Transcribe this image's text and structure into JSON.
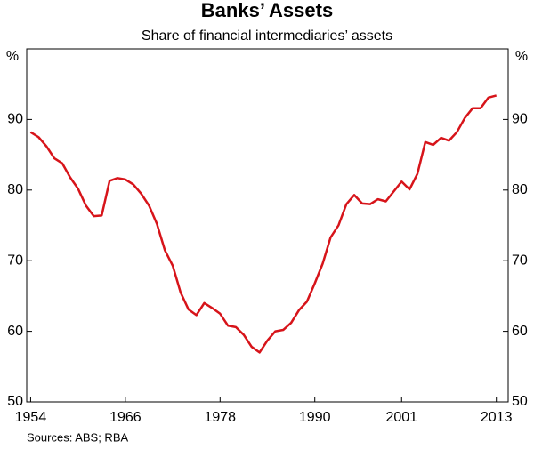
{
  "chart_data": {
    "type": "line",
    "title": "Banks’ Assets",
    "subtitle": "Share of financial intermediaries’ assets",
    "y_unit": "%",
    "source": "Sources: ABS; RBA",
    "x": [
      1954,
      1955,
      1956,
      1957,
      1958,
      1959,
      1960,
      1961,
      1962,
      1963,
      1964,
      1965,
      1966,
      1967,
      1968,
      1969,
      1970,
      1971,
      1972,
      1973,
      1974,
      1975,
      1976,
      1977,
      1978,
      1979,
      1980,
      1981,
      1982,
      1983,
      1984,
      1985,
      1986,
      1987,
      1988,
      1989,
      1990,
      1991,
      1992,
      1993,
      1994,
      1995,
      1996,
      1997,
      1998,
      1999,
      2000,
      2001,
      2002,
      2003,
      2004,
      2005,
      2006,
      2007,
      2008,
      2009,
      2010,
      2011,
      2012,
      2013
    ],
    "series": [
      {
        "color": "#d7141a",
        "values": [
          88.2,
          87.5,
          86.2,
          84.5,
          83.8,
          81.8,
          80.2,
          77.8,
          76.3,
          76.4,
          81.3,
          81.7,
          81.5,
          80.8,
          79.5,
          77.8,
          75.2,
          71.5,
          69.3,
          65.5,
          63.1,
          62.3,
          64.0,
          63.3,
          62.5,
          60.8,
          60.6,
          59.5,
          57.8,
          57.0,
          58.7,
          60.0,
          60.2,
          61.2,
          63.0,
          64.2,
          66.8,
          69.6,
          73.3,
          75.0,
          78.0,
          79.3,
          78.1,
          78.0,
          78.7,
          78.4,
          79.8,
          81.2,
          80.1,
          82.3,
          86.8,
          86.4,
          87.4,
          87.0,
          88.2,
          90.2,
          91.6,
          91.6,
          93.1,
          93.4
        ]
      }
    ],
    "xlim": [
      1953.5,
      2014.5
    ],
    "xticks": [
      1954,
      1966,
      1978,
      1990,
      2001,
      2013
    ],
    "ylim": [
      50,
      100
    ],
    "yticks": [
      50,
      60,
      70,
      80,
      90
    ],
    "grid": false
  }
}
